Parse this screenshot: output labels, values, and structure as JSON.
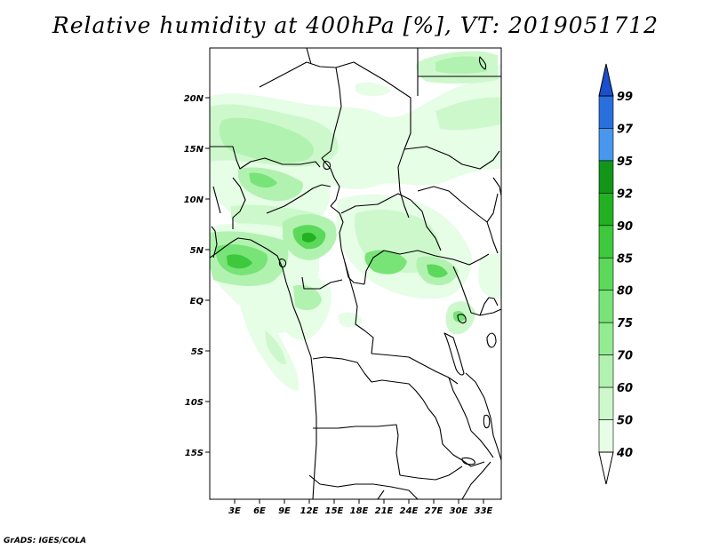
{
  "title": "Relative humidity at 400hPa [%], VT: 2019051712",
  "credit": "GrADS: IGES/COLA",
  "map": {
    "region": "Central and West-Central Africa",
    "variable": "Relative humidity",
    "level": "400hPa",
    "units": "%",
    "valid_time": "2019051712",
    "lat_labels": [
      "20N",
      "15N",
      "10N",
      "5N",
      "EQ",
      "5S",
      "10S",
      "15S"
    ],
    "lon_labels": [
      "3E",
      "6E",
      "9E",
      "12E",
      "15E",
      "18E",
      "21E",
      "24E",
      "27E",
      "30E",
      "33E"
    ]
  },
  "colorbar": {
    "levels": [
      "40",
      "50",
      "60",
      "70",
      "75",
      "80",
      "85",
      "90",
      "92",
      "95",
      "97",
      "99"
    ],
    "colors": [
      "#ffffff",
      "#e6fde6",
      "#cdf8cc",
      "#b2f2b0",
      "#94ec92",
      "#78e477",
      "#5cd95a",
      "#3dc93b",
      "#22b221",
      "#12961a",
      "#4797ee",
      "#2a6fde",
      "#1a4fcf"
    ]
  }
}
